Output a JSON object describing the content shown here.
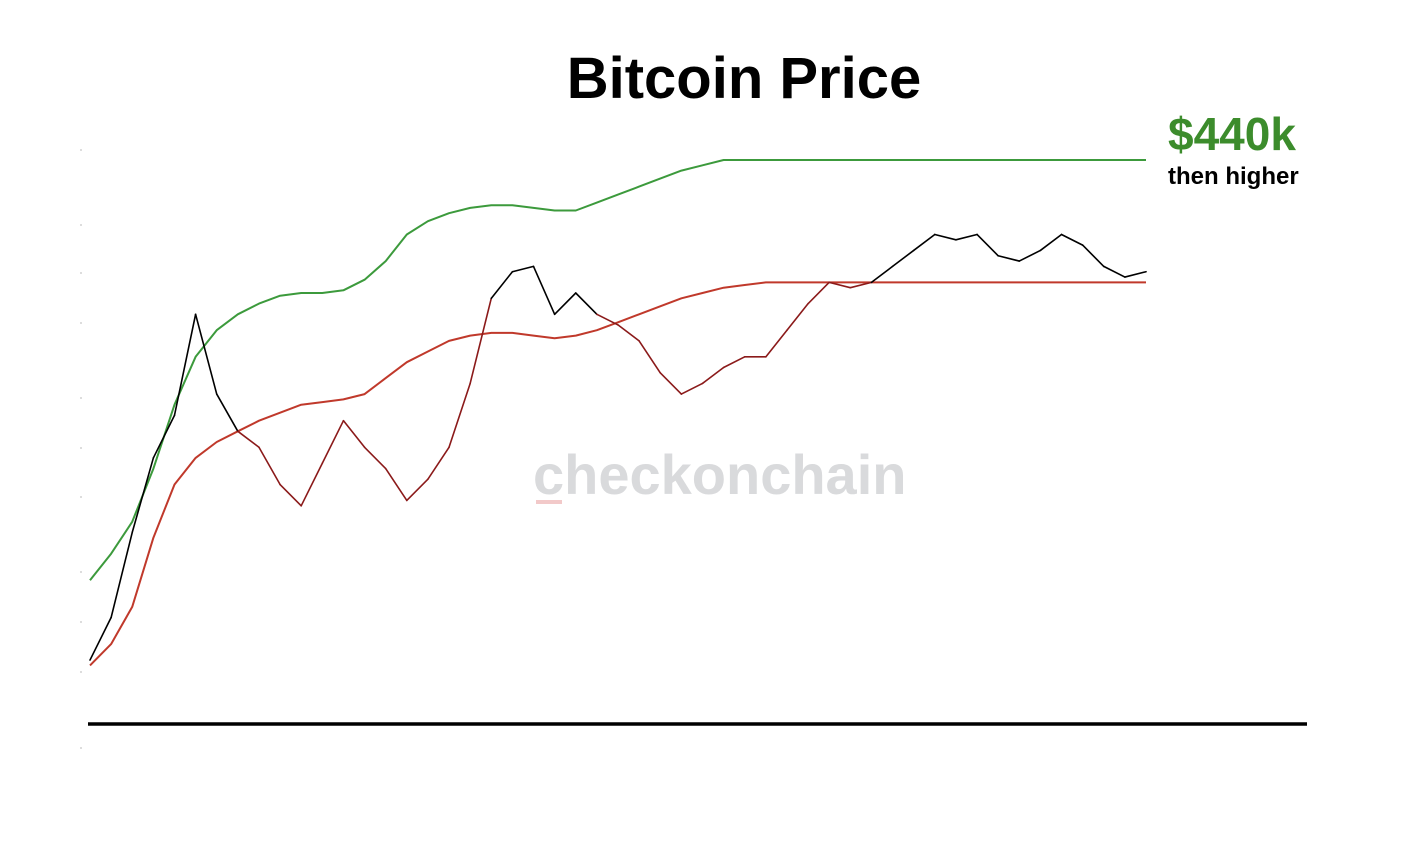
{
  "chart_data": {
    "type": "line",
    "title": "Bitcoin Price",
    "xlabel": "",
    "ylabel": "",
    "y_scale": "log",
    "grid": false,
    "legend": "none",
    "x": [
      0,
      0.02,
      0.04,
      0.06,
      0.08,
      0.1,
      0.12,
      0.14,
      0.16,
      0.18,
      0.2,
      0.22,
      0.24,
      0.26,
      0.28,
      0.3,
      0.32,
      0.34,
      0.36,
      0.38,
      0.4,
      0.42,
      0.44,
      0.46,
      0.48,
      0.5,
      0.52,
      0.54,
      0.56,
      0.58,
      0.6,
      0.62,
      0.64,
      0.66,
      0.68,
      0.7,
      0.72,
      0.74,
      0.76,
      0.78,
      0.8,
      0.82,
      0.84,
      0.86,
      0.88,
      0.9,
      0.92,
      0.94,
      0.96,
      0.98,
      1.0
    ],
    "series": [
      {
        "key": "price",
        "color": "#000000",
        "below_color": "#8b1a1a",
        "values": [
          0.06,
          0.14,
          0.3,
          0.44,
          0.52,
          0.71,
          0.56,
          0.49,
          0.46,
          0.39,
          0.35,
          0.43,
          0.51,
          0.46,
          0.42,
          0.36,
          0.4,
          0.46,
          0.58,
          0.74,
          0.79,
          0.8,
          0.71,
          0.75,
          0.71,
          0.69,
          0.66,
          0.6,
          0.56,
          0.58,
          0.61,
          0.63,
          0.63,
          0.68,
          0.73,
          0.77,
          0.76,
          0.77,
          0.8,
          0.83,
          0.86,
          0.85,
          0.86,
          0.82,
          0.81,
          0.83,
          0.86,
          0.84,
          0.8,
          0.78,
          0.79
        ]
      },
      {
        "key": "upper_band",
        "color": "#3c9a3c",
        "values": [
          0.21,
          0.26,
          0.32,
          0.42,
          0.54,
          0.63,
          0.68,
          0.71,
          0.73,
          0.745,
          0.75,
          0.75,
          0.755,
          0.775,
          0.81,
          0.86,
          0.885,
          0.9,
          0.91,
          0.915,
          0.915,
          0.91,
          0.905,
          0.905,
          0.92,
          0.935,
          0.95,
          0.965,
          0.98,
          0.99,
          1.0,
          1.0,
          1.0,
          1.0,
          1.0,
          1.0,
          1.0,
          1.0,
          1.0,
          1.0,
          1.0,
          1.0,
          1.0,
          1.0,
          1.0,
          1.0,
          1.0,
          1.0,
          1.0,
          1.0,
          1.0
        ]
      },
      {
        "key": "lower_band",
        "color": "#c0392b",
        "values": [
          0.05,
          0.09,
          0.16,
          0.29,
          0.39,
          0.44,
          0.47,
          0.49,
          0.51,
          0.525,
          0.54,
          0.545,
          0.55,
          0.56,
          0.59,
          0.62,
          0.64,
          0.66,
          0.67,
          0.675,
          0.675,
          0.67,
          0.665,
          0.67,
          0.68,
          0.695,
          0.71,
          0.725,
          0.74,
          0.75,
          0.76,
          0.765,
          0.77,
          0.77,
          0.77,
          0.77,
          0.77,
          0.77,
          0.77,
          0.77,
          0.77,
          0.77,
          0.77,
          0.77,
          0.77,
          0.77,
          0.77,
          0.77,
          0.77,
          0.77,
          0.77
        ]
      }
    ],
    "annotations": [
      {
        "text": "$440k",
        "color": "#3c8c2c"
      },
      {
        "text": "then higher",
        "color": "#000000"
      }
    ],
    "watermark": "checkonchain"
  }
}
